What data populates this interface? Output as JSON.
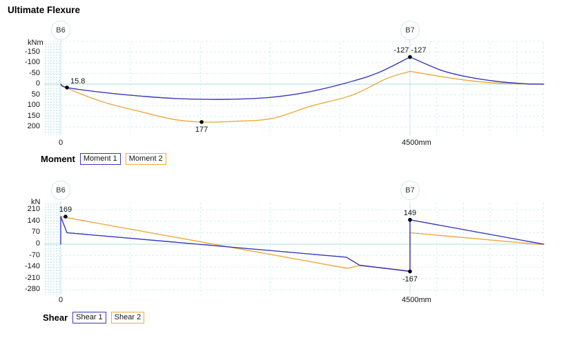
{
  "title": "Ultimate Flexure",
  "colors": {
    "series1": "#3838bc",
    "series2": "#eda93c",
    "grid": "#d7efef",
    "zero_line": "#aadede",
    "axis_line": "#bfe7e7",
    "node_stroke": "#cdeaea",
    "dot": "#000000",
    "text": "#111111"
  },
  "chart_data": [
    {
      "type": "line",
      "name": "Moment",
      "unit": "kNm",
      "x_unit": "mm",
      "y_axis_inverted": true,
      "y_ticks": [
        {
          "v": -150,
          "label": "-150"
        },
        {
          "v": -100,
          "label": "-100"
        },
        {
          "v": -50,
          "label": "-50"
        },
        {
          "v": 0,
          "label": "0"
        },
        {
          "v": 50,
          "label": "50"
        },
        {
          "v": 100,
          "label": "100"
        },
        {
          "v": 150,
          "label": "150"
        },
        {
          "v": 200,
          "label": "200"
        }
      ],
      "extra_grid_v": [
        -200
      ],
      "x_labels": [
        {
          "mm": 0,
          "label": "0"
        },
        {
          "mm": 4500,
          "label": "4500mm"
        }
      ],
      "nodes": [
        {
          "label": "B6",
          "mm": 0
        },
        {
          "label": "B7",
          "mm": 4500
        }
      ],
      "grid_mm": [
        900,
        1800,
        2700,
        3600,
        4844,
        5188,
        5532,
        5876,
        6220
      ],
      "series": [
        {
          "name": "Moment 1",
          "color": "#3838bc",
          "smooth": true,
          "segments": [
            [
              [
                0,
                0
              ],
              [
                80,
                15.8
              ],
              [
                550,
                39
              ],
              [
                1000,
                55
              ],
              [
                1530,
                68
              ],
              [
                2150,
                71
              ],
              [
                2700,
                62
              ],
              [
                3200,
                36
              ],
              [
                3750,
                -13
              ],
              [
                4100,
                -55
              ],
              [
                4500,
                -127
              ]
            ],
            [
              [
                4500,
                -127
              ],
              [
                4910,
                -64
              ],
              [
                5270,
                -32
              ],
              [
                5620,
                -13
              ],
              [
                5980,
                -2
              ],
              [
                6220,
                0
              ]
            ]
          ]
        },
        {
          "name": "Moment 2",
          "color": "#eda93c",
          "smooth": true,
          "segments": [
            [
              [
                0,
                0
              ],
              [
                107,
                23
              ],
              [
                550,
                84
              ],
              [
                1000,
                126
              ],
              [
                1440,
                164
              ],
              [
                1815,
                177
              ],
              [
                2240,
                174
              ],
              [
                2730,
                160
              ],
              [
                3220,
                103
              ],
              [
                3750,
                52
              ],
              [
                4200,
                -26
              ],
              [
                4500,
                -60
              ]
            ],
            [
              [
                4500,
                -60
              ],
              [
                4910,
                -35
              ],
              [
                5270,
                -16
              ],
              [
                5620,
                -5
              ],
              [
                5980,
                -1
              ],
              [
                6220,
                0
              ]
            ]
          ]
        }
      ],
      "point_labels": [
        {
          "text": "15.8",
          "mm": 80,
          "v": 15.8,
          "placement": "above-right"
        },
        {
          "text": "177",
          "mm": 1815,
          "v": 177,
          "placement": "below"
        },
        {
          "text": "-127 -127",
          "mm": 4500,
          "v": -127,
          "placement": "above"
        }
      ],
      "legend_title": "Moment"
    },
    {
      "type": "line",
      "name": "Shear",
      "unit": "kN",
      "x_unit": "mm",
      "y_axis_inverted": false,
      "y_ticks": [
        {
          "v": 210,
          "label": "210"
        },
        {
          "v": 140,
          "label": "140"
        },
        {
          "v": 70,
          "label": "70"
        },
        {
          "v": 0,
          "label": "0"
        },
        {
          "v": -70,
          "label": "-70"
        },
        {
          "v": -140,
          "label": "-140"
        },
        {
          "v": -210,
          "label": "-210"
        },
        {
          "v": -280,
          "label": "-280"
        }
      ],
      "extra_grid_v": [],
      "x_labels": [
        {
          "mm": 0,
          "label": "0"
        },
        {
          "mm": 4500,
          "label": "4500mm"
        }
      ],
      "nodes": [
        {
          "label": "B6",
          "mm": 0
        },
        {
          "label": "B7",
          "mm": 4500
        }
      ],
      "grid_mm": [
        900,
        1800,
        2700,
        3600,
        4844,
        5188,
        5532,
        5876,
        6220
      ],
      "series": [
        {
          "name": "Shear 1",
          "color": "#3838bc",
          "smooth": false,
          "segments": [
            [
              [
                0,
                0
              ],
              [
                0,
                169
              ],
              [
                80,
                70
              ],
              [
                3680,
                -80
              ],
              [
                3850,
                -129
              ],
              [
                4500,
                -167
              ],
              [
                4500,
                149
              ],
              [
                6220,
                0
              ]
            ]
          ]
        },
        {
          "name": "Shear 2",
          "color": "#eda93c",
          "smooth": false,
          "segments": [
            [
              [
                0,
                169
              ],
              [
                3690,
                -148
              ],
              [
                3850,
                -131
              ],
              [
                4500,
                -164
              ],
              [
                4500,
                70
              ],
              [
                6130,
                0
              ],
              [
                6220,
                0
              ]
            ]
          ]
        }
      ],
      "point_labels": [
        {
          "text": "169",
          "mm": 62,
          "v": 169,
          "placement": "above"
        },
        {
          "text": "149",
          "mm": 4500,
          "v": 149,
          "placement": "above"
        },
        {
          "text": "-167",
          "mm": 4500,
          "v": -167,
          "placement": "below"
        }
      ],
      "legend_title": "Shear"
    }
  ]
}
